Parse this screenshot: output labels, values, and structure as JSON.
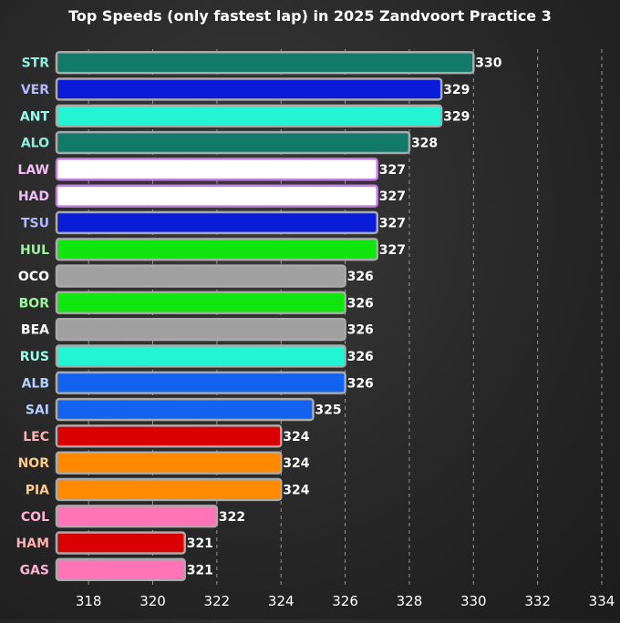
{
  "chart_data": {
    "type": "bar",
    "orientation": "horizontal",
    "title": "Top Speeds (only fastest lap) in 2025 Zandvoort Practice 3",
    "xlabel": "",
    "ylabel": "",
    "xlim": [
      317,
      334
    ],
    "xticks": [
      318,
      320,
      322,
      324,
      326,
      328,
      330,
      332,
      334
    ],
    "grid": "vertical dashed",
    "categories": [
      "STR",
      "VER",
      "ANT",
      "ALO",
      "LAW",
      "HAD",
      "TSU",
      "HUL",
      "OCO",
      "BOR",
      "BEA",
      "RUS",
      "ALB",
      "SAI",
      "LEC",
      "NOR",
      "PIA",
      "COL",
      "HAM",
      "GAS"
    ],
    "values": [
      330,
      329,
      329,
      328,
      327,
      327,
      327,
      327,
      326,
      326,
      326,
      326,
      326,
      325,
      324,
      324,
      324,
      322,
      321,
      321
    ],
    "bar_colors": [
      "#137a6a",
      "#0b1cd9",
      "#22f5d3",
      "#137a6a",
      "#ffffff",
      "#ffffff",
      "#0b1cd9",
      "#0ee60e",
      "#a0a0a0",
      "#0ee60e",
      "#a0a0a0",
      "#22f5d3",
      "#1463f0",
      "#1463f0",
      "#d90000",
      "#ff8a00",
      "#ff8a00",
      "#ff74b6",
      "#d90000",
      "#ff74b6"
    ],
    "label_colors": [
      "#8bf0dc",
      "#b3b8ff",
      "#9cfbea",
      "#8bf0dc",
      "#f0bdf5",
      "#f0bdf5",
      "#b3b8ff",
      "#9bf59b",
      "#ffffff",
      "#9bf59b",
      "#ffffff",
      "#9cfbea",
      "#b3ceff",
      "#b3ceff",
      "#ffb0b0",
      "#ffcc88",
      "#ffcc88",
      "#ffb3d6",
      "#ffb0b0",
      "#ffb3d6"
    ],
    "border_colors": [
      "#aaaaaa",
      "#aaaaaa",
      "#aaaaaa",
      "#aaaaaa",
      "#c27de0",
      "#c27de0",
      "#aaaaaa",
      "#aaaaaa",
      "#aaaaaa",
      "#aaaaaa",
      "#aaaaaa",
      "#aaaaaa",
      "#aaaaaa",
      "#aaaaaa",
      "#aaaaaa",
      "#aaaaaa",
      "#aaaaaa",
      "#aaaaaa",
      "#aaaaaa",
      "#aaaaaa"
    ]
  }
}
